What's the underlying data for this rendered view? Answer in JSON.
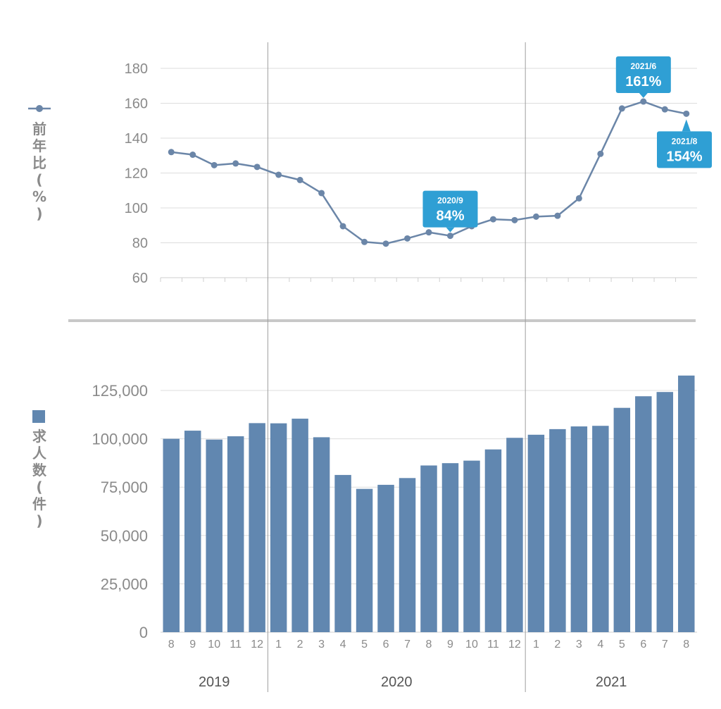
{
  "colors": {
    "line": "#6b86a8",
    "bar": "#6187b0",
    "callout": "#2f9fd4",
    "grid": "#dddddd",
    "axis_text": "#8a8a8a"
  },
  "chart_data": [
    {
      "type": "line",
      "ylabel_chars": [
        "前",
        "年",
        "比",
        "(",
        "%",
        ")"
      ],
      "ylim": [
        60,
        180
      ],
      "yticks": [
        "60",
        "80",
        "100",
        "120",
        "140",
        "160",
        "180"
      ],
      "values": [
        132,
        130.5,
        124.5,
        125.5,
        123.5,
        119,
        116,
        108.5,
        89.5,
        80.5,
        79.5,
        82.5,
        86,
        84,
        89.5,
        93.5,
        93,
        95,
        95.5,
        105.5,
        131,
        157,
        161,
        156.5,
        154
      ],
      "callouts": [
        {
          "index": 13,
          "date": "2020/9",
          "value": "84%"
        },
        {
          "index": 22,
          "date": "2021/6",
          "value": "161%"
        },
        {
          "index": 24,
          "date": "2021/8",
          "value": "154%"
        }
      ]
    },
    {
      "type": "bar",
      "ylabel_chars": [
        "求",
        "人",
        "数",
        "(",
        "件",
        ")"
      ],
      "ylim": [
        0,
        125000
      ],
      "yticks": [
        "0",
        "25,000",
        "50,000",
        "75,000",
        "100,000",
        "125,000"
      ],
      "categories": [
        "8",
        "9",
        "10",
        "11",
        "12",
        "1",
        "2",
        "3",
        "4",
        "5",
        "6",
        "7",
        "8",
        "9",
        "10",
        "11",
        "12",
        "1",
        "2",
        "3",
        "4",
        "5",
        "6",
        "7",
        "8"
      ],
      "values": [
        100000,
        104200,
        99600,
        101300,
        108100,
        108000,
        110400,
        100800,
        81300,
        74100,
        76200,
        79700,
        86200,
        87400,
        88700,
        94500,
        100500,
        102100,
        105000,
        106400,
        106700,
        116000,
        122000,
        124200,
        132700
      ],
      "years": [
        {
          "label": "2019",
          "first": 0,
          "last": 4
        },
        {
          "label": "2020",
          "first": 5,
          "last": 16
        },
        {
          "label": "2021",
          "first": 17,
          "last": 24
        }
      ]
    }
  ]
}
